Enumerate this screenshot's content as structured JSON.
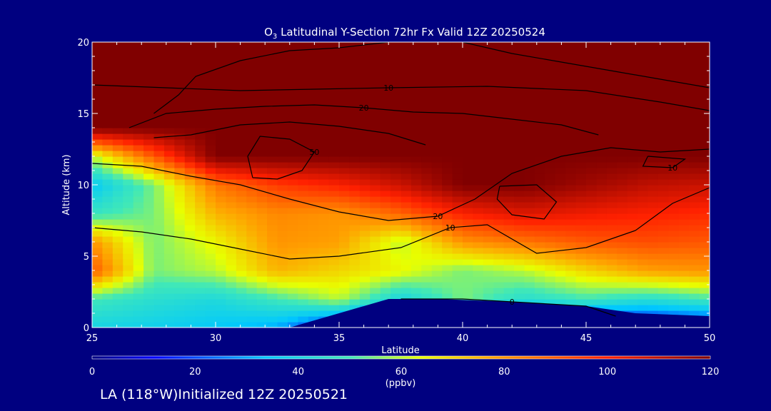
{
  "chart_data": {
    "type": "heatmap",
    "title": {
      "prefix": "O",
      "subscript": "3",
      "rest": " Latitudinal Y-Section 72hr  Fx Valid 12Z 20250524"
    },
    "xlabel": "Latitude",
    "ylabel": "Altitude (km)",
    "xlim": [
      25,
      50
    ],
    "ylim": [
      0,
      20
    ],
    "x_ticks": [
      "25",
      "30",
      "35",
      "40",
      "45",
      "50"
    ],
    "y_ticks": [
      "0",
      "5",
      "10",
      "15",
      "20"
    ],
    "colorbar": {
      "range": [
        0,
        120
      ],
      "ticks": [
        "0",
        "20",
        "40",
        "60",
        "80",
        "100",
        "120"
      ],
      "unit": "(ppbv)"
    },
    "field_lat": [
      25,
      27.5,
      30,
      32.5,
      35,
      37.5,
      40,
      42.5,
      45,
      47.5,
      50
    ],
    "field_alt": [
      0,
      2,
      4,
      6,
      8,
      10,
      12,
      14,
      16,
      18,
      20
    ],
    "field_values": [
      [
        40,
        38,
        35,
        30,
        10,
        0,
        0,
        0,
        0,
        5,
        10
      ],
      [
        50,
        45,
        42,
        50,
        60,
        40,
        55,
        45,
        50,
        45,
        50
      ],
      [
        90,
        55,
        60,
        75,
        70,
        65,
        55,
        60,
        70,
        78,
        80
      ],
      [
        80,
        55,
        65,
        80,
        78,
        60,
        80,
        85,
        90,
        92,
        90
      ],
      [
        48,
        55,
        75,
        82,
        80,
        88,
        100,
        105,
        102,
        100,
        98
      ],
      [
        35,
        55,
        85,
        95,
        100,
        108,
        120,
        120,
        115,
        110,
        108
      ],
      [
        60,
        90,
        120,
        120,
        120,
        120,
        120,
        120,
        120,
        120,
        120
      ],
      [
        120,
        120,
        120,
        120,
        120,
        120,
        120,
        120,
        120,
        120,
        120
      ],
      [
        120,
        120,
        120,
        120,
        120,
        120,
        120,
        120,
        120,
        120,
        120
      ],
      [
        120,
        120,
        120,
        120,
        120,
        120,
        120,
        120,
        120,
        120,
        120
      ],
      [
        120,
        120,
        120,
        120,
        120,
        120,
        120,
        120,
        120,
        120,
        120
      ]
    ],
    "terrain_mask": [
      [
        33,
        0
      ],
      [
        35,
        1
      ],
      [
        37,
        2
      ],
      [
        39,
        2
      ],
      [
        42,
        1.8
      ],
      [
        45,
        1.5
      ],
      [
        47,
        1
      ],
      [
        50,
        0.8
      ]
    ],
    "contours": [
      {
        "label": "0",
        "points": [
          [
            37.5,
            2
          ],
          [
            40,
            2
          ],
          [
            42,
            1.8
          ],
          [
            45,
            1.5
          ],
          [
            46.2,
            0.8
          ]
        ]
      },
      {
        "label": "10",
        "points": [
          [
            25,
            7
          ],
          [
            27,
            6.7
          ],
          [
            29,
            6.2
          ],
          [
            31,
            5.5
          ],
          [
            33,
            4.8
          ],
          [
            35,
            5
          ],
          [
            37.5,
            5.6
          ],
          [
            39.5,
            7
          ],
          [
            41,
            7.2
          ],
          [
            43,
            5.2
          ],
          [
            45,
            5.6
          ],
          [
            47,
            6.8
          ],
          [
            48.5,
            8.7
          ],
          [
            50,
            9.8
          ]
        ]
      },
      {
        "label": "10",
        "points": [
          [
            25,
            17
          ],
          [
            28,
            16.8
          ],
          [
            31,
            16.6
          ],
          [
            34,
            16.7
          ],
          [
            37,
            16.8
          ],
          [
            41,
            16.9
          ],
          [
            45,
            16.6
          ],
          [
            48,
            15.8
          ],
          [
            50,
            15.2
          ]
        ]
      },
      {
        "label": "10",
        "points": [
          [
            47.5,
            12
          ],
          [
            49,
            11.8
          ],
          [
            48.5,
            11.2
          ],
          [
            47.3,
            11.3
          ],
          [
            47.5,
            12
          ]
        ]
      },
      {
        "label": "20",
        "points": [
          [
            25,
            11.5
          ],
          [
            27,
            11.3
          ],
          [
            29,
            10.6
          ],
          [
            31,
            10
          ],
          [
            33,
            9
          ],
          [
            35,
            8.1
          ],
          [
            37,
            7.5
          ],
          [
            39,
            7.8
          ],
          [
            40.5,
            9
          ],
          [
            42,
            10.8
          ],
          [
            44,
            12
          ],
          [
            46,
            12.6
          ],
          [
            48,
            12.3
          ],
          [
            50,
            12.5
          ]
        ]
      },
      {
        "label": "20",
        "points": [
          [
            26.5,
            14
          ],
          [
            28,
            15
          ],
          [
            30,
            15.3
          ],
          [
            32,
            15.5
          ],
          [
            34,
            15.6
          ],
          [
            36,
            15.4
          ],
          [
            38,
            15.1
          ],
          [
            40,
            15
          ],
          [
            42,
            14.6
          ],
          [
            44,
            14.2
          ],
          [
            45.5,
            13.5
          ]
        ]
      },
      {
        "label": "50",
        "points": [
          [
            31.5,
            10.5
          ],
          [
            31.3,
            12
          ],
          [
            31.8,
            13.4
          ],
          [
            33,
            13.2
          ],
          [
            34,
            12.3
          ],
          [
            33.5,
            11
          ],
          [
            32.5,
            10.4
          ],
          [
            31.5,
            10.5
          ]
        ]
      },
      {
        "label": "",
        "points": [
          [
            27.5,
            13.3
          ],
          [
            29,
            13.5
          ],
          [
            31,
            14.2
          ],
          [
            33,
            14.4
          ],
          [
            35,
            14.1
          ],
          [
            37,
            13.6
          ],
          [
            38.5,
            12.8
          ]
        ]
      },
      {
        "label": "",
        "points": [
          [
            27.5,
            15
          ],
          [
            28.5,
            16.3
          ],
          [
            29.2,
            17.6
          ],
          [
            31,
            18.7
          ],
          [
            33,
            19.4
          ],
          [
            35,
            19.6
          ],
          [
            37,
            20
          ]
        ]
      },
      {
        "label": "",
        "points": [
          [
            40,
            20
          ],
          [
            42,
            19.2
          ],
          [
            44,
            18.6
          ],
          [
            46,
            18
          ],
          [
            50,
            16.8
          ]
        ]
      },
      {
        "label": "",
        "points": [
          [
            41.5,
            9.9
          ],
          [
            43,
            10
          ],
          [
            43.8,
            8.8
          ],
          [
            43.3,
            7.6
          ],
          [
            42,
            7.9
          ],
          [
            41.4,
            9
          ],
          [
            41.5,
            9.9
          ]
        ]
      }
    ]
  },
  "footer_text": "LA (118°W)Initialized 12Z 20250521"
}
